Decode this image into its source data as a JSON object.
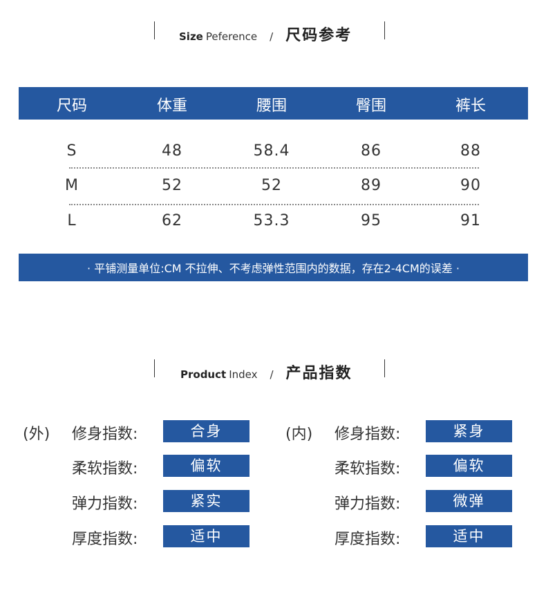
{
  "size_section": {
    "title_en_bold": "Size",
    "title_en": "Peference",
    "slash": "/",
    "title_cn": "尺码参考"
  },
  "size_table": {
    "headers": [
      "尺码",
      "体重",
      "腰围",
      "臀围",
      "裤长"
    ],
    "rows": [
      [
        "S",
        "48",
        "58.4",
        "86",
        "88"
      ],
      [
        "M",
        "52",
        "52",
        "89",
        "90"
      ],
      [
        "L",
        "62",
        "53.3",
        "95",
        "91"
      ]
    ]
  },
  "note": "· 平铺测量单位:CM  不拉伸、不考虑弹性范围内的数据，存在2-4CM的误差 ·",
  "product_section": {
    "title_en_bold": "Product",
    "title_en": "Index",
    "slash": "/",
    "title_cn": "产品指数"
  },
  "outer": {
    "tag": "(外)",
    "items": [
      {
        "label": "修身指数:",
        "value": "合身"
      },
      {
        "label": "柔软指数:",
        "value": "偏软"
      },
      {
        "label": "弹力指数:",
        "value": "紧实"
      },
      {
        "label": "厚度指数:",
        "value": "适中"
      }
    ]
  },
  "inner": {
    "tag": "(内)",
    "items": [
      {
        "label": "修身指数:",
        "value": "紧身"
      },
      {
        "label": "柔软指数:",
        "value": "偏软"
      },
      {
        "label": "弹力指数:",
        "value": "微弹"
      },
      {
        "label": "厚度指数:",
        "value": "适中"
      }
    ]
  },
  "colors": {
    "accent": "#2558a0"
  }
}
